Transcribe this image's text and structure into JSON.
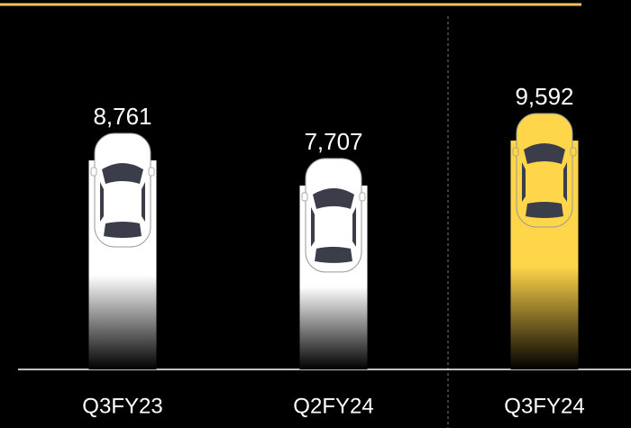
{
  "chart_data": {
    "type": "bar",
    "categories": [
      "Q3FY23",
      "Q2FY24",
      "Q3FY24"
    ],
    "values": [
      8761,
      7707,
      9592
    ],
    "value_labels": [
      "8,761",
      "7,707",
      "9,592"
    ],
    "colors": [
      "#ffffff",
      "#ffffff",
      "#ffd54a"
    ]
  }
}
